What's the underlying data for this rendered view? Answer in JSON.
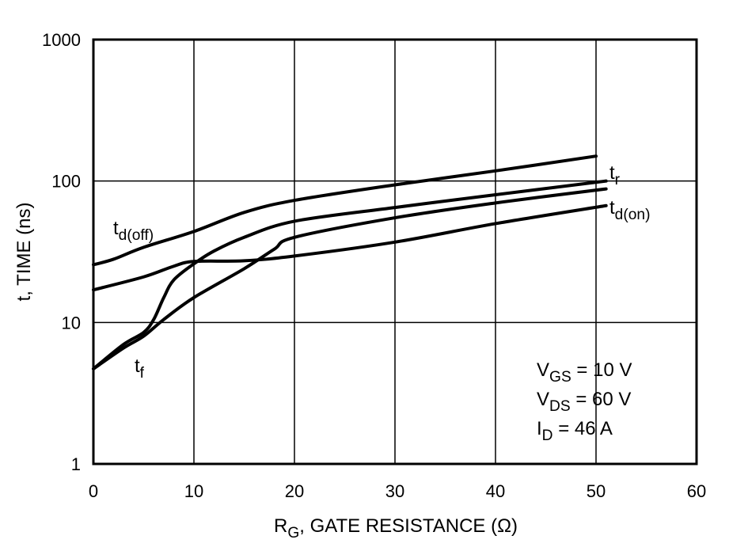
{
  "chart_data": {
    "type": "line",
    "title": "",
    "xlabel_main": "R",
    "xlabel_sub": "G",
    "xlabel_rest": ", GATE RESISTANCE (Ω)",
    "ylabel": "t, TIME (ns)",
    "xlim": [
      0,
      60
    ],
    "ylim": [
      1,
      1000
    ],
    "yscale": "log",
    "grid": true,
    "x_ticks": [
      "0",
      "10",
      "20",
      "30",
      "40",
      "50",
      "60"
    ],
    "y_ticks": [
      "1",
      "10",
      "100",
      "1000"
    ],
    "series": [
      {
        "name": "td(off)",
        "label_main": "t",
        "label_sub": "d(off)",
        "x": [
          0,
          2,
          5,
          10,
          15,
          20,
          30,
          40,
          50
        ],
        "y": [
          25.6,
          28,
          34,
          44,
          60,
          73,
          94,
          118,
          150
        ]
      },
      {
        "name": "tr",
        "label_main": "t",
        "label_sub": "r",
        "x": [
          0,
          3,
          5,
          6,
          7,
          8,
          10,
          12,
          15,
          20,
          30,
          40,
          51
        ],
        "y": [
          4.7,
          7,
          8.5,
          10.5,
          15,
          20,
          26,
          32,
          40,
          52,
          65,
          80,
          100
        ]
      },
      {
        "name": "tf",
        "label_main": "t",
        "label_sub": "f",
        "x": [
          0,
          3,
          5,
          7,
          10,
          15,
          18,
          20,
          30,
          40,
          51
        ],
        "y": [
          4.7,
          6.6,
          8,
          10.5,
          15,
          24,
          33,
          40,
          55,
          70,
          88
        ]
      },
      {
        "name": "td(on)",
        "label_main": "t",
        "label_sub": "d(on)",
        "x": [
          0,
          5,
          8,
          10,
          15,
          20,
          30,
          40,
          51
        ],
        "y": [
          17,
          21,
          25,
          27,
          27.3,
          29.5,
          37,
          50,
          67
        ]
      }
    ],
    "annotations": [
      {
        "main": "V",
        "sub": "GS",
        "rest": " = 10 V"
      },
      {
        "main": "V",
        "sub": "DS",
        "rest": " = 60 V"
      },
      {
        "main": "I",
        "sub": "D",
        "rest": " = 46 A"
      }
    ]
  }
}
